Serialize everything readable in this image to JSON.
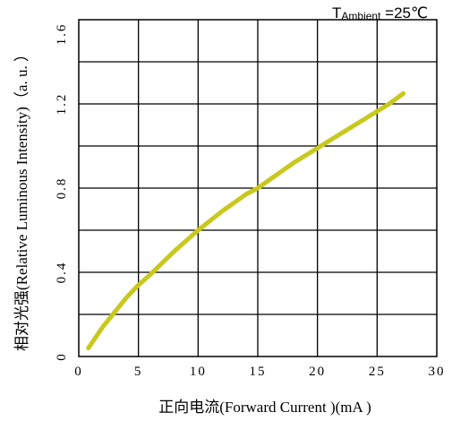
{
  "chart_data": {
    "type": "line",
    "title": "",
    "xlabel": "正向电流(Forward Current )(mA )",
    "ylabel": "相对光强(Relative Luminous Intensity)（a. u. ）",
    "xlim": [
      0,
      30
    ],
    "ylim": [
      0,
      1.6
    ],
    "x_ticks": [
      "0",
      "5",
      "10",
      "15",
      "20",
      "25",
      "30"
    ],
    "y_ticks": [
      "0",
      "0.4",
      "0.8",
      "1.2",
      "1.6"
    ],
    "x_tick_values": [
      0,
      5,
      10,
      15,
      20,
      25,
      30
    ],
    "y_tick_values": [
      0,
      0.4,
      0.8,
      1.2,
      1.6
    ],
    "grid": true,
    "annotation": {
      "main": "T",
      "sub": "Ambient",
      "value": " =25℃"
    },
    "series": [
      {
        "color": "#c8c81e",
        "x": [
          0.8,
          2,
          3,
          4,
          5,
          6,
          8,
          10,
          12,
          14,
          15,
          16,
          18,
          20,
          22,
          24,
          26,
          27.2
        ],
        "y": [
          0.04,
          0.14,
          0.21,
          0.28,
          0.34,
          0.39,
          0.5,
          0.6,
          0.69,
          0.77,
          0.8,
          0.84,
          0.92,
          0.99,
          1.06,
          1.13,
          1.2,
          1.25
        ]
      }
    ]
  }
}
